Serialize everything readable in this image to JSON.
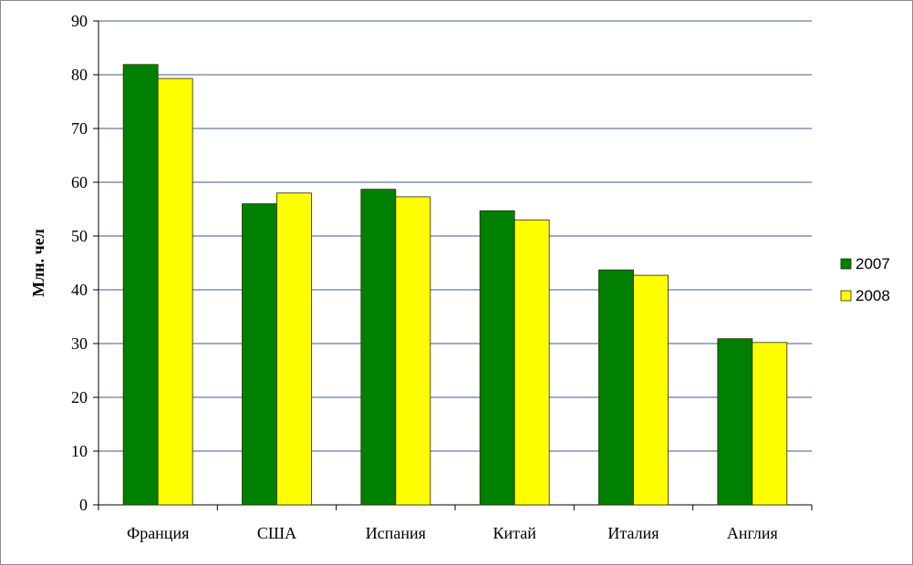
{
  "chart_data": {
    "type": "bar",
    "ylabel": "Млн. чел",
    "xlabel": "",
    "title": "",
    "ylim": [
      0,
      90
    ],
    "y_ticks": [
      0,
      10,
      20,
      30,
      40,
      50,
      60,
      70,
      80,
      90
    ],
    "grid": true,
    "legend_position": "right",
    "categories": [
      "Франция",
      "США",
      "Испания",
      "Китай",
      "Италия",
      "Англия"
    ],
    "series": [
      {
        "name": "2007",
        "color": "#008000",
        "values": [
          81.9,
          56.0,
          58.7,
          54.7,
          43.7,
          30.9
        ]
      },
      {
        "name": "2008",
        "color": "#ffff00",
        "values": [
          79.3,
          58.0,
          57.3,
          53.0,
          42.7,
          30.2
        ]
      }
    ]
  }
}
